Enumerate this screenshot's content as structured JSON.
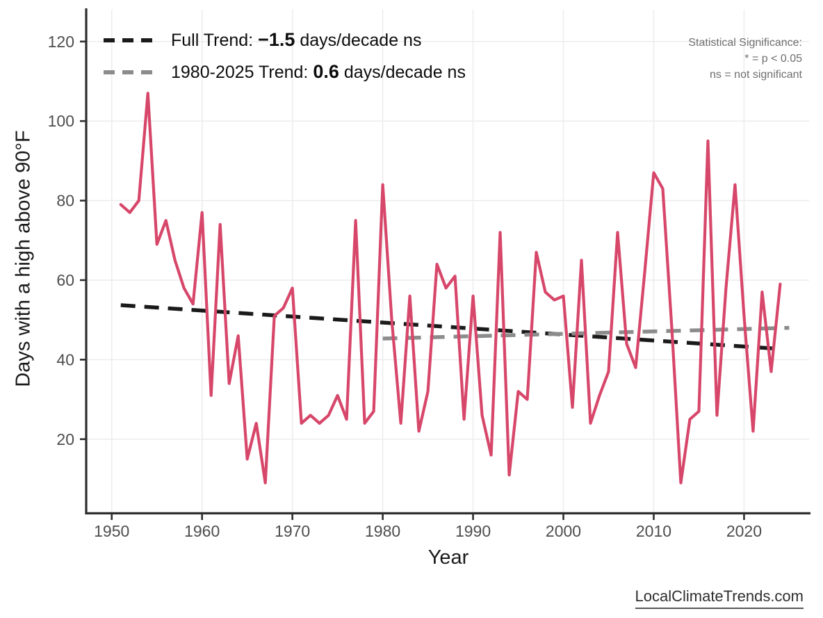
{
  "legend": {
    "full_trend": {
      "prefix": "Full Trend: ",
      "value": "−1.5",
      "suffix": " days/decade ns"
    },
    "recent_trend": {
      "prefix": "1980-2025 Trend: ",
      "value": "0.6",
      "suffix": " days/decade ns"
    }
  },
  "annotation": {
    "line1": "Statistical Significance:",
    "line2": "* = p < 0.05",
    "line3": "ns = not significant"
  },
  "watermark": "LocalClimateTrends.com",
  "axes": {
    "x_label": "Year",
    "y_label": "Days with a high above 90°F",
    "x_ticks": [
      1950,
      1960,
      1970,
      1980,
      1990,
      2000,
      2010,
      2020
    ],
    "y_ticks": [
      20,
      40,
      60,
      80,
      100,
      120
    ]
  },
  "colors": {
    "series_red": "#d7476a",
    "trend_black": "#1a1a1a",
    "trend_grey": "#8c8c8c",
    "grid": "#ececec",
    "axis": "#2e2e2e",
    "tick_label": "#4d4d4d"
  },
  "chart_data": {
    "type": "line",
    "title": "",
    "series_name": "Days with a high above 90°F",
    "xlabel": "Year",
    "ylabel": "Days with a high above 90°F",
    "grid": true,
    "legend_position": "top-left",
    "xlim": [
      1947.25,
      2027.2
    ],
    "ylim": [
      1.6,
      128.0
    ],
    "years": [
      1951,
      1952,
      1953,
      1954,
      1955,
      1956,
      1957,
      1958,
      1959,
      1960,
      1961,
      1962,
      1963,
      1964,
      1965,
      1966,
      1967,
      1968,
      1969,
      1970,
      1971,
      1972,
      1973,
      1974,
      1975,
      1976,
      1977,
      1978,
      1979,
      1980,
      1981,
      1982,
      1983,
      1984,
      1985,
      1986,
      1987,
      1988,
      1989,
      1990,
      1991,
      1992,
      1993,
      1994,
      1995,
      1996,
      1997,
      1998,
      1999,
      2000,
      2001,
      2002,
      2003,
      2004,
      2005,
      2006,
      2007,
      2008,
      2009,
      2010,
      2011,
      2012,
      2013,
      2014,
      2015,
      2016,
      2017,
      2018,
      2019,
      2020,
      2021,
      2022,
      2023,
      2024
    ],
    "values": [
      79,
      77,
      80,
      107,
      69,
      75,
      65,
      58,
      54,
      77,
      31,
      74,
      34,
      46,
      15,
      24,
      9,
      51,
      53,
      58,
      24,
      26,
      24,
      26,
      31,
      25,
      75,
      24,
      27,
      84,
      50,
      24,
      56,
      22,
      32,
      64,
      58,
      61,
      25,
      56,
      26,
      16,
      72,
      11,
      32,
      30,
      67,
      57,
      55,
      56,
      28,
      65,
      24,
      31,
      37,
      72,
      44,
      38,
      62,
      87,
      83,
      48,
      9,
      25,
      27,
      95,
      26,
      58,
      84,
      51,
      22,
      57,
      37,
      59
    ],
    "trend_lines": [
      {
        "name": "full_trend",
        "x1": 1951,
        "y1": 53.7,
        "x2": 2024,
        "y2": 42.7,
        "slope_days_per_decade": -1.5,
        "significance": "ns",
        "color_key": "trend_black"
      },
      {
        "name": "recent_trend",
        "x1": 1980,
        "y1": 45.3,
        "x2": 2025,
        "y2": 48.0,
        "slope_days_per_decade": 0.6,
        "significance": "ns",
        "color_key": "trend_grey"
      }
    ]
  }
}
